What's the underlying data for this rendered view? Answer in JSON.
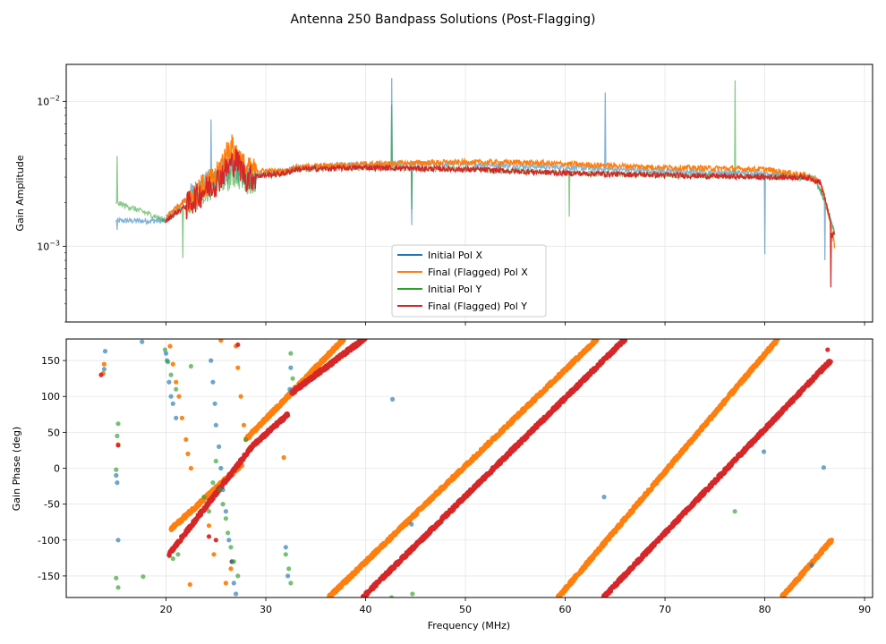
{
  "chart_data": {
    "title": "Antenna 250 Bandpass Solutions (Post-Flagging)",
    "colors": {
      "initial_x": "#1f77b4",
      "final_x": "#ff7f0e",
      "initial_y": "#2ca02c",
      "final_y": "#d62728"
    },
    "amplitude_panel": {
      "type": "line",
      "ylabel": "Gain Amplitude",
      "yscale": "log",
      "ylim": [
        0.0003,
        0.018
      ],
      "xlim": [
        10.0,
        90.8
      ],
      "yticks": [
        {
          "value": 0.001,
          "base": "10",
          "exp": "−3"
        },
        {
          "value": 0.01,
          "base": "10",
          "exp": "−2"
        }
      ],
      "legend": [
        "Initial Pol X",
        "Final (Flagged) Pol X",
        "Initial Pol Y",
        "Final (Flagged) Pol Y"
      ],
      "series": [
        {
          "name": "Initial Pol X",
          "color": "#1f77b4",
          "range": [
            15.0,
            87.0
          ],
          "baseline": [
            [
              15,
              0.0015
            ],
            [
              20,
              0.0015
            ],
            [
              22,
              0.0021
            ],
            [
              25,
              0.003
            ],
            [
              27,
              0.0036
            ],
            [
              28,
              0.003
            ],
            [
              30,
              0.0032
            ],
            [
              32,
              0.0033
            ],
            [
              33,
              0.0035
            ],
            [
              40,
              0.0037
            ],
            [
              50,
              0.0037
            ],
            [
              60,
              0.0035
            ],
            [
              70,
              0.0033
            ],
            [
              80,
              0.0032
            ],
            [
              84,
              0.003
            ],
            [
              85,
              0.003
            ],
            [
              86,
              0.002
            ],
            [
              87,
              0.0012
            ]
          ],
          "spikes": [
            [
              15.1,
              0.0013
            ],
            [
              24.5,
              0.0075
            ],
            [
              42.6,
              0.0145
            ],
            [
              44.6,
              0.0014
            ],
            [
              64.0,
              0.0115
            ],
            [
              80.0,
              0.00088
            ],
            [
              86.0,
              0.0008
            ]
          ]
        },
        {
          "name": "Final (Flagged) Pol X",
          "color": "#ff7f0e",
          "range": [
            20.0,
            87.0
          ],
          "baseline": [
            [
              20,
              0.0016
            ],
            [
              22,
              0.0021
            ],
            [
              25,
              0.003
            ],
            [
              26.5,
              0.005
            ],
            [
              28,
              0.0034
            ],
            [
              30,
              0.0033
            ],
            [
              32,
              0.0033
            ],
            [
              33,
              0.0035
            ],
            [
              40,
              0.0037
            ],
            [
              48,
              0.0038
            ],
            [
              55,
              0.0038
            ],
            [
              60,
              0.0037
            ],
            [
              70,
              0.0035
            ],
            [
              80,
              0.0034
            ],
            [
              84,
              0.0031
            ],
            [
              85.5,
              0.0028
            ],
            [
              86.5,
              0.0015
            ],
            [
              87,
              0.001
            ]
          ],
          "spikes": []
        },
        {
          "name": "Initial Pol Y",
          "color": "#2ca02c",
          "range": [
            15.0,
            87.0
          ],
          "baseline": [
            [
              15,
              0.002
            ],
            [
              20,
              0.0015
            ],
            [
              22,
              0.0019
            ],
            [
              25,
              0.0028
            ],
            [
              27,
              0.0032
            ],
            [
              28,
              0.0029
            ],
            [
              30,
              0.0031
            ],
            [
              32,
              0.0032
            ],
            [
              33,
              0.0034
            ],
            [
              40,
              0.0035
            ],
            [
              50,
              0.0034
            ],
            [
              60,
              0.0032
            ],
            [
              70,
              0.0031
            ],
            [
              80,
              0.003
            ],
            [
              84,
              0.003
            ],
            [
              85,
              0.0029
            ],
            [
              86,
              0.002
            ],
            [
              87,
              0.0012
            ]
          ],
          "spikes": [
            [
              15.1,
              0.0042
            ],
            [
              21.7,
              0.00083
            ],
            [
              42.6,
              0.0095
            ],
            [
              44.6,
              0.0018
            ],
            [
              60.4,
              0.0016
            ],
            [
              77.0,
              0.014
            ]
          ]
        },
        {
          "name": "Final (Flagged) Pol Y",
          "color": "#d62728",
          "range": [
            20.0,
            87.0
          ],
          "baseline": [
            [
              20,
              0.0015
            ],
            [
              22,
              0.0019
            ],
            [
              25,
              0.0028
            ],
            [
              27,
              0.004
            ],
            [
              28,
              0.003
            ],
            [
              30,
              0.0031
            ],
            [
              32,
              0.0032
            ],
            [
              33,
              0.0034
            ],
            [
              40,
              0.0035
            ],
            [
              50,
              0.0034
            ],
            [
              60,
              0.0032
            ],
            [
              70,
              0.0031
            ],
            [
              80,
              0.003
            ],
            [
              84,
              0.003
            ],
            [
              85.5,
              0.0028
            ],
            [
              86.3,
              0.0018
            ],
            [
              86.7,
              0.0012
            ]
          ],
          "spikes": [
            [
              86.6,
              0.00052
            ]
          ]
        }
      ]
    },
    "phase_panel": {
      "type": "scatter",
      "xlabel": "Frequency (MHz)",
      "ylabel": "Gain Phase (deg)",
      "xlim": [
        10.0,
        90.8
      ],
      "ylim": [
        -180,
        180
      ],
      "xticks": [
        20,
        30,
        40,
        50,
        60,
        70,
        80,
        90
      ],
      "yticks": [
        -150,
        -100,
        -50,
        0,
        50,
        100,
        150
      ],
      "series": [
        {
          "name": "Initial Pol X",
          "color": "#1f77b4",
          "points": [
            [
              13.9,
              163
            ],
            [
              13.8,
              138
            ],
            [
              15.0,
              -10
            ],
            [
              15.1,
              -20
            ],
            [
              15.2,
              -100
            ],
            [
              17.6,
              176
            ],
            [
              20.0,
              160
            ],
            [
              20.1,
              150
            ],
            [
              20.3,
              120
            ],
            [
              20.5,
              100
            ],
            [
              20.7,
              90
            ],
            [
              21.0,
              70
            ],
            [
              24.5,
              150
            ],
            [
              24.7,
              120
            ],
            [
              24.9,
              90
            ],
            [
              25.0,
              60
            ],
            [
              25.3,
              30
            ],
            [
              25.5,
              0
            ],
            [
              25.7,
              -30
            ],
            [
              26.0,
              -60
            ],
            [
              26.3,
              -100
            ],
            [
              26.6,
              -130
            ],
            [
              26.8,
              -160
            ],
            [
              27.0,
              -175
            ],
            [
              32.0,
              -110
            ],
            [
              32.2,
              -150
            ],
            [
              32.4,
              110
            ],
            [
              32.5,
              140
            ],
            [
              42.7,
              96
            ],
            [
              44.6,
              -78
            ],
            [
              63.9,
              -40
            ],
            [
              79.9,
              23
            ],
            [
              85.9,
              1
            ],
            [
              84.7,
              -135
            ]
          ]
        },
        {
          "name": "Initial Pol Y",
          "color": "#2ca02c",
          "points": [
            [
              15.0,
              -2
            ],
            [
              15.1,
              45
            ],
            [
              15.2,
              62
            ],
            [
              15.0,
              -153
            ],
            [
              15.2,
              -166
            ],
            [
              17.7,
              -151
            ],
            [
              19.9,
              165
            ],
            [
              20.2,
              148
            ],
            [
              20.5,
              130
            ],
            [
              21.0,
              110
            ],
            [
              21.2,
              -120
            ],
            [
              20.7,
              -126
            ],
            [
              22.5,
              142
            ],
            [
              23.8,
              -40
            ],
            [
              24.3,
              -60
            ],
            [
              24.7,
              -20
            ],
            [
              25.0,
              10
            ],
            [
              25.4,
              -30
            ],
            [
              25.7,
              -50
            ],
            [
              26.0,
              -70
            ],
            [
              26.2,
              -90
            ],
            [
              26.5,
              -110
            ],
            [
              26.8,
              -130
            ],
            [
              27.2,
              -150
            ],
            [
              28.0,
              40
            ],
            [
              32.0,
              -120
            ],
            [
              32.3,
              -140
            ],
            [
              32.5,
              -160
            ],
            [
              32.5,
              160
            ],
            [
              32.7,
              125
            ],
            [
              42.6,
              -180
            ],
            [
              44.7,
              -175
            ],
            [
              77.0,
              -60
            ]
          ]
        },
        {
          "name": "Final (Flagged) Pol X",
          "color": "#ff7f0e",
          "segments": [
            [
              20.5,
              -85,
              27.6,
              5
            ],
            [
              28.0,
              40,
              37.8,
              180
            ],
            [
              36.3,
              -180,
              63.2,
              180
            ],
            [
              59.3,
              -180,
              81.3,
              180
            ],
            [
              81.7,
              -180,
              86.7,
              -100
            ]
          ],
          "points": [
            [
              13.8,
              145
            ],
            [
              13.7,
              132
            ],
            [
              20.4,
              170
            ],
            [
              20.7,
              145
            ],
            [
              21.0,
              120
            ],
            [
              21.3,
              100
            ],
            [
              21.6,
              70
            ],
            [
              22.0,
              40
            ],
            [
              22.2,
              20
            ],
            [
              22.5,
              0
            ],
            [
              23.5,
              -45
            ],
            [
              24.3,
              -80
            ],
            [
              24.8,
              -120
            ],
            [
              25.5,
              178
            ],
            [
              26.0,
              -160
            ],
            [
              26.5,
              -140
            ],
            [
              27.0,
              170
            ],
            [
              27.2,
              140
            ],
            [
              27.5,
              100
            ],
            [
              27.8,
              60
            ],
            [
              31.8,
              15
            ],
            [
              15.2,
              33
            ],
            [
              22.4,
              -162
            ]
          ]
        },
        {
          "name": "Final (Flagged) Pol Y",
          "color": "#d62728",
          "segments": [
            [
              20.3,
              -120,
              28.6,
              30
            ],
            [
              28.6,
              30,
              32.2,
              75
            ],
            [
              32.6,
              105,
              40.0,
              182
            ],
            [
              39.7,
              -180,
              66.0,
              180
            ],
            [
              63.8,
              -180,
              86.6,
              150
            ]
          ],
          "points": [
            [
              13.5,
              130
            ],
            [
              15.2,
              32
            ],
            [
              24.3,
              -95
            ],
            [
              25.0,
              -100
            ],
            [
              26.6,
              -130
            ],
            [
              27.2,
              172
            ],
            [
              86.3,
              165
            ]
          ]
        }
      ]
    }
  }
}
